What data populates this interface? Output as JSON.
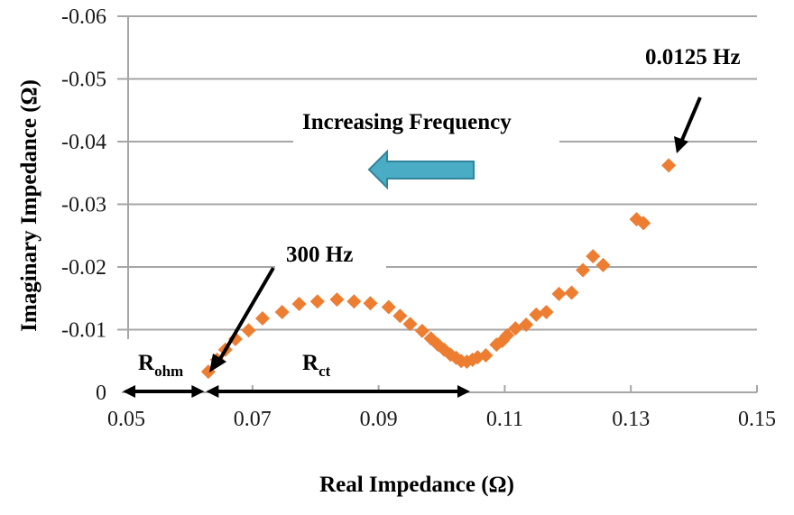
{
  "chart_data": {
    "type": "scatter",
    "title": "",
    "xlabel": "Real Impedance (Ω)",
    "ylabel": "Imaginary Impedance (Ω)",
    "xlim": [
      0.05,
      0.15
    ],
    "ylim": [
      0,
      -0.06
    ],
    "x_ticks": [
      0.05,
      0.07,
      0.09,
      0.11,
      0.13,
      0.15
    ],
    "x_tick_labels": [
      "0.05",
      "0.07",
      "0.09",
      "0.11",
      "0.13",
      "0.15"
    ],
    "y_ticks": [
      0,
      -0.01,
      -0.02,
      -0.03,
      -0.04,
      -0.05,
      -0.06
    ],
    "y_tick_labels": [
      "0",
      "-0.01",
      "-0.02",
      "-0.03",
      "-0.04",
      "-0.05",
      "-0.06"
    ],
    "grid": "horizontal",
    "legend": "none",
    "marker": "diamond",
    "marker_color": "#ed7d31",
    "series": [
      {
        "name": "Impedance",
        "x": [
          0.063,
          0.0644,
          0.0657,
          0.0673,
          0.0694,
          0.0716,
          0.0747,
          0.0774,
          0.0803,
          0.0834,
          0.0861,
          0.0887,
          0.0916,
          0.0934,
          0.095,
          0.0969,
          0.0983,
          0.0994,
          0.1004,
          0.1014,
          0.1023,
          0.1031,
          0.104,
          0.1049,
          0.1057,
          0.107,
          0.1087,
          0.1096,
          0.1104,
          0.1117,
          0.1134,
          0.115,
          0.1166,
          0.1186,
          0.1206,
          0.1224,
          0.124,
          0.1256,
          0.1309,
          0.132,
          0.136
        ],
        "y": [
          -0.0033,
          -0.0052,
          -0.0068,
          -0.0085,
          -0.0099,
          -0.0118,
          -0.0128,
          -0.0141,
          -0.0145,
          -0.0148,
          -0.0145,
          -0.0142,
          -0.0136,
          -0.0122,
          -0.0109,
          -0.0098,
          -0.0086,
          -0.0076,
          -0.0068,
          -0.006,
          -0.0055,
          -0.005,
          -0.0049,
          -0.0052,
          -0.0056,
          -0.0059,
          -0.0076,
          -0.0082,
          -0.0091,
          -0.0102,
          -0.0108,
          -0.0124,
          -0.0128,
          -0.0157,
          -0.0159,
          -0.0195,
          -0.0217,
          -0.0203,
          -0.0276,
          -0.027,
          -0.0362
        ]
      }
    ],
    "annotations": [
      {
        "name": "high-frequency-label",
        "text": "300 Hz",
        "points_to": [
          0.063,
          -0.0033
        ]
      },
      {
        "name": "low-frequency-label",
        "text": "0.0125 Hz",
        "points_to": [
          0.136,
          -0.0362
        ]
      },
      {
        "name": "direction-label",
        "text": "Increasing Frequency",
        "arrow": "left",
        "arrow_color": "#4bacc6"
      },
      {
        "name": "r-ohm-label",
        "text_main": "R",
        "text_sub": "ohm",
        "span": [
          0.05,
          0.0625
        ]
      },
      {
        "name": "r-ct-label",
        "text_main": "R",
        "text_sub": "ct",
        "span": [
          0.0625,
          0.1045
        ]
      }
    ]
  }
}
